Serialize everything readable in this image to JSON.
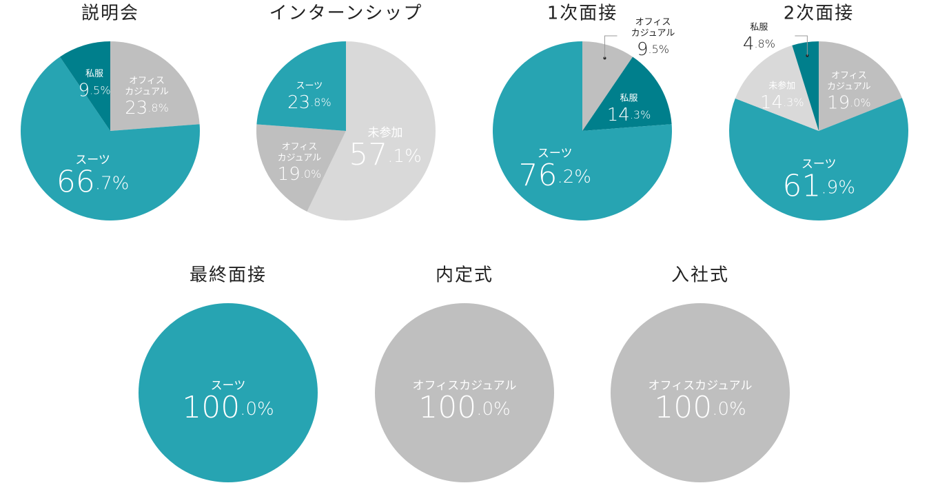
{
  "chart_data": [
    {
      "type": "pie",
      "title": "説明会",
      "categories": [
        "オフィスカジュアル",
        "スーツ",
        "私服"
      ],
      "values": [
        23.8,
        66.7,
        9.5
      ],
      "value_labels": [
        "23.8%",
        "66.7%",
        "9.5%"
      ],
      "colors": [
        "#bfbfbf",
        "#27a4b2",
        "#007f8c"
      ]
    },
    {
      "type": "pie",
      "title": "インターンシップ",
      "categories": [
        "未参加",
        "オフィスカジュアル",
        "スーツ"
      ],
      "values": [
        57.1,
        19.0,
        23.8
      ],
      "value_labels": [
        "57.1%",
        "19.0%",
        "23.8%"
      ],
      "colors": [
        "#d9d9d9",
        "#bfbfbf",
        "#27a4b2"
      ]
    },
    {
      "type": "pie",
      "title": "1次面接",
      "categories": [
        "オフィスカジュアル",
        "私服",
        "スーツ"
      ],
      "values": [
        9.5,
        14.3,
        76.2
      ],
      "value_labels": [
        "9.5%",
        "14.3%",
        "76.2%"
      ],
      "colors": [
        "#bfbfbf",
        "#007f8c",
        "#27a4b2"
      ]
    },
    {
      "type": "pie",
      "title": "2次面接",
      "categories": [
        "オフィスカジュアル",
        "スーツ",
        "未参加",
        "私服"
      ],
      "values": [
        19.0,
        61.9,
        14.3,
        4.8
      ],
      "value_labels": [
        "19.0%",
        "61.9%",
        "14.3%",
        "4.8%"
      ],
      "colors": [
        "#bfbfbf",
        "#27a4b2",
        "#d9d9d9",
        "#007f8c"
      ]
    },
    {
      "type": "pie",
      "title": "最終面接",
      "categories": [
        "スーツ"
      ],
      "values": [
        100.0
      ],
      "value_labels": [
        "100.0%"
      ],
      "colors": [
        "#27a4b2"
      ]
    },
    {
      "type": "pie",
      "title": "内定式",
      "categories": [
        "オフィスカジュアル"
      ],
      "values": [
        100.0
      ],
      "value_labels": [
        "100.0%"
      ],
      "colors": [
        "#bfbfbf"
      ]
    },
    {
      "type": "pie",
      "title": "入社式",
      "categories": [
        "オフィスカジュアル"
      ],
      "values": [
        100.0
      ],
      "value_labels": [
        "100.0%"
      ],
      "colors": [
        "#bfbfbf"
      ]
    }
  ]
}
